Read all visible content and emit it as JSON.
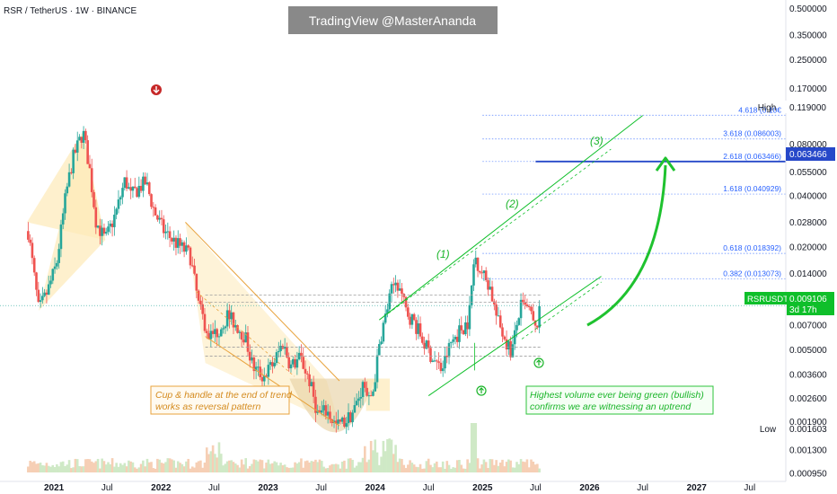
{
  "header": {
    "title": "RSR / TetherUS · 1W · BINANCE"
  },
  "watermark": "TradingView @MasterAnanda",
  "colors": {
    "up": "#26a69a",
    "down": "#ef5350",
    "accent_green": "#0fbf2a",
    "fib": "#2962ff",
    "price_box": "#0fbf2a",
    "fib_box": "#2648c9",
    "wedge": "#e8a33d",
    "cup": "#c8a45a"
  },
  "annotations": {
    "cup_handle_line1": "Cup & handle at the end of trend",
    "cup_handle_line2": "works as reversal pattern",
    "volume_line1": "Highest volume ever being green (bullish)",
    "volume_line2": "confirms we are witnessing an uptrend",
    "wave1": "(1)",
    "wave2": "(2)",
    "wave3": "(3)"
  },
  "markers": {
    "high_label": "High",
    "low_label": "Low"
  },
  "price_badge": {
    "symbol": "RSRUSDT",
    "price": "0.009106",
    "countdown": "3d 17h"
  },
  "target_badge": {
    "price": "0.063466"
  },
  "high_badge": {
    "price": "0.119000"
  },
  "low_badge": {
    "price": "0.001603"
  },
  "chart_data": {
    "type": "candlestick",
    "title": "RSR / TetherUS · 1W · BINANCE",
    "y_scale": "log",
    "ylim": [
      0.00085,
      0.56
    ],
    "x_range": [
      "2020-07-01",
      "2027-11-01"
    ],
    "y_ticks": [
      "0.500000",
      "0.350000",
      "0.250000",
      "0.170000",
      "0.119000",
      "0.080000",
      "0.055000",
      "0.040000",
      "0.028000",
      "0.020000",
      "0.014000",
      "0.010000",
      "0.007000",
      "0.005000",
      "0.003600",
      "0.002600",
      "0.001900",
      "0.001603",
      "0.001300",
      "0.000950"
    ],
    "x_ticks": [
      {
        "label": "2021",
        "date": "2021-01-01"
      },
      {
        "label": "Jul",
        "date": "2021-07-01"
      },
      {
        "label": "2022",
        "date": "2022-01-01"
      },
      {
        "label": "Jul",
        "date": "2022-07-01"
      },
      {
        "label": "2023",
        "date": "2023-01-01"
      },
      {
        "label": "Jul",
        "date": "2023-07-01"
      },
      {
        "label": "2024",
        "date": "2024-01-01"
      },
      {
        "label": "Jul",
        "date": "2024-07-01"
      },
      {
        "label": "2025",
        "date": "2025-01-01"
      },
      {
        "label": "Jul",
        "date": "2025-07-01"
      },
      {
        "label": "2026",
        "date": "2026-01-01"
      },
      {
        "label": "Jul",
        "date": "2026-07-01"
      },
      {
        "label": "2027",
        "date": "2027-01-01"
      },
      {
        "label": "Jul",
        "date": "2027-07-01"
      }
    ],
    "price_path": [
      [
        "2020-10-01",
        0.028
      ],
      [
        "2020-11-10",
        0.0085
      ],
      [
        "2020-12-10",
        0.011
      ],
      [
        "2021-01-10",
        0.016
      ],
      [
        "2021-02-10",
        0.04
      ],
      [
        "2021-03-05",
        0.065
      ],
      [
        "2021-04-10",
        0.095
      ],
      [
        "2021-05-01",
        0.06
      ],
      [
        "2021-05-25",
        0.028
      ],
      [
        "2021-06-25",
        0.022
      ],
      [
        "2021-08-01",
        0.032
      ],
      [
        "2021-09-01",
        0.05
      ],
      [
        "2021-09-20",
        0.04
      ],
      [
        "2021-10-20",
        0.045
      ],
      [
        "2021-11-10",
        0.048
      ],
      [
        "2021-12-10",
        0.032
      ],
      [
        "2022-01-10",
        0.025
      ],
      [
        "2022-02-10",
        0.022
      ],
      [
        "2022-03-10",
        0.02
      ],
      [
        "2022-04-10",
        0.018
      ],
      [
        "2022-05-10",
        0.009
      ],
      [
        "2022-06-15",
        0.006
      ],
      [
        "2022-07-15",
        0.0065
      ],
      [
        "2022-08-15",
        0.008
      ],
      [
        "2022-09-15",
        0.007
      ],
      [
        "2022-10-15",
        0.006
      ],
      [
        "2022-11-10",
        0.004
      ],
      [
        "2022-12-15",
        0.0035
      ],
      [
        "2023-01-20",
        0.0042
      ],
      [
        "2023-02-20",
        0.0055
      ],
      [
        "2023-03-20",
        0.004
      ],
      [
        "2023-04-20",
        0.0045
      ],
      [
        "2023-05-20",
        0.0034
      ],
      [
        "2023-06-20",
        0.0021
      ],
      [
        "2023-07-20",
        0.0022
      ],
      [
        "2023-08-20",
        0.0018
      ],
      [
        "2023-09-20",
        0.0019
      ],
      [
        "2023-10-20",
        0.0022
      ],
      [
        "2023-11-20",
        0.0031
      ],
      [
        "2023-12-10",
        0.0025
      ],
      [
        "2023-12-25",
        0.0029
      ],
      [
        "2024-01-20",
        0.006
      ],
      [
        "2024-02-25",
        0.011
      ],
      [
        "2024-03-15",
        0.013
      ],
      [
        "2024-04-15",
        0.0085
      ],
      [
        "2024-05-15",
        0.0072
      ],
      [
        "2024-06-15",
        0.0055
      ],
      [
        "2024-07-15",
        0.0045
      ],
      [
        "2024-08-15",
        0.0038
      ],
      [
        "2024-09-15",
        0.0055
      ],
      [
        "2024-10-15",
        0.0065
      ],
      [
        "2024-11-15",
        0.0075
      ],
      [
        "2024-12-05",
        0.018
      ],
      [
        "2025-01-01",
        0.014
      ],
      [
        "2025-01-25",
        0.012
      ],
      [
        "2025-02-20",
        0.0075
      ],
      [
        "2025-03-20",
        0.0058
      ],
      [
        "2025-04-10",
        0.0048
      ],
      [
        "2025-05-10",
        0.009
      ],
      [
        "2025-06-10",
        0.0085
      ],
      [
        "2025-06-30",
        0.0065
      ],
      [
        "2025-07-20",
        0.009
      ]
    ],
    "fib_levels": [
      {
        "label": "4.618 (0.10€",
        "value": 0.1185
      },
      {
        "label": "3.618 (0.086003)",
        "value": 0.086003
      },
      {
        "label": "2.618 (0.063466)",
        "value": 0.063466
      },
      {
        "label": "1.618 (0.040929)",
        "value": 0.040929
      },
      {
        "label": "0.618 (0.018392)",
        "value": 0.018392
      },
      {
        "label": "0.382 (0.013073)",
        "value": 0.013073
      }
    ],
    "resistance_levels": [
      0.0105,
      0.0095
    ],
    "support_levels": [
      0.0052,
      0.0046
    ],
    "last_price": 0.009106,
    "target": 0.063466,
    "all_time_high": 0.119,
    "low": 0.001603,
    "legend": "none",
    "grid": false
  }
}
